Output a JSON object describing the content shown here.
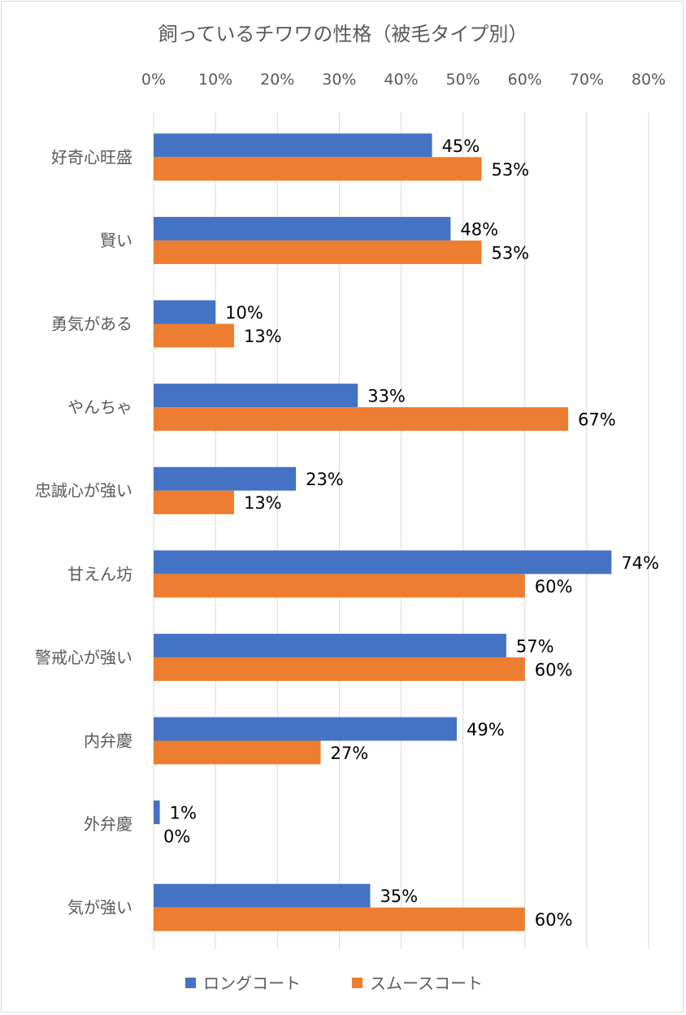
{
  "chart_data": {
    "type": "bar",
    "orientation": "horizontal",
    "title": "飼っているチワワの性格（被毛タイプ別）",
    "xlabel": "",
    "ylabel": "",
    "xlim": [
      0,
      80
    ],
    "x_ticks": [
      "0%",
      "10%",
      "20%",
      "30%",
      "40%",
      "50%",
      "60%",
      "70%",
      "80%"
    ],
    "x_axis_position": "top",
    "grid": true,
    "legend_position": "bottom",
    "categories": [
      "好奇心旺盛",
      "賢い",
      "勇気がある",
      "やんちゃ",
      "忠誠心が強い",
      "甘えん坊",
      "警戒心が強い",
      "内弁慶",
      "外弁慶",
      "気が強い"
    ],
    "series": [
      {
        "name": "ロングコート",
        "color": "#4472C4",
        "values": [
          45,
          48,
          10,
          33,
          23,
          74,
          57,
          49,
          1,
          35
        ]
      },
      {
        "name": "スムースコート",
        "color": "#ED7D31",
        "values": [
          53,
          53,
          13,
          67,
          13,
          60,
          60,
          27,
          0,
          60
        ]
      }
    ]
  }
}
